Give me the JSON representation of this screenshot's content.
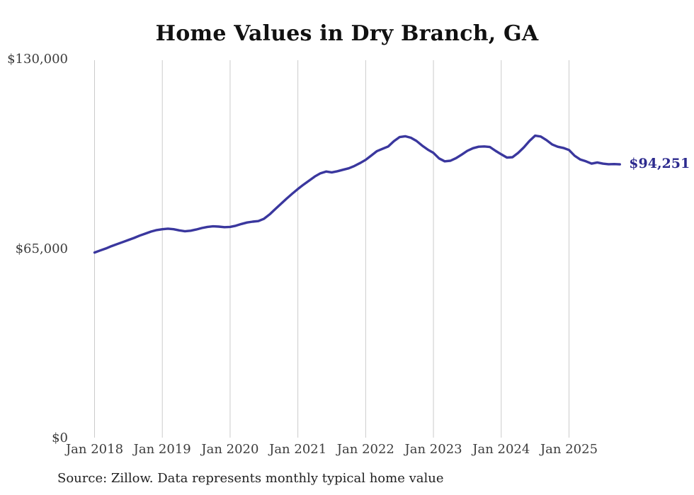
{
  "page": {
    "background": "#ffffff"
  },
  "chart_data": {
    "type": "line",
    "title": "Home Values in Dry Branch, GA",
    "xlabel": "",
    "ylabel": "",
    "ylim": [
      0,
      130000
    ],
    "y_ticks": [
      130000,
      65000,
      0
    ],
    "y_tick_labels": [
      "$130,000",
      "$65,000",
      "$0"
    ],
    "x_tick_labels": [
      "Jan 2018",
      "Jan 2019",
      "Jan 2020",
      "Jan 2021",
      "Jan 2022",
      "Jan 2023",
      "Jan 2024",
      "Jan 2025"
    ],
    "grid": "vertical-only",
    "legend_position": "none",
    "end_label": "$94,251",
    "last_value": 94251,
    "source_note": "Source: Zillow. Data represents monthly typical home value",
    "colors": {
      "line": "#3a379e",
      "end_label": "#2c2a8e",
      "gridline": "#cbcbcb",
      "title": "#111111",
      "axis_label": "#3d3d3d",
      "source": "#222222"
    },
    "series": [
      {
        "name": "Typical home value (monthly)",
        "start": "2018-01",
        "end": "2025-10",
        "frequency": "monthly",
        "values": [
          64000,
          64700,
          65400,
          66200,
          66900,
          67600,
          68300,
          69000,
          69800,
          70500,
          71200,
          71700,
          72000,
          72200,
          72000,
          71600,
          71300,
          71500,
          71900,
          72400,
          72800,
          73000,
          72900,
          72700,
          72800,
          73200,
          73800,
          74300,
          74600,
          74800,
          75600,
          77100,
          78900,
          80700,
          82500,
          84200,
          85800,
          87300,
          88700,
          90100,
          91200,
          91800,
          91500,
          91900,
          92400,
          92900,
          93700,
          94700,
          95800,
          97300,
          98800,
          99600,
          100400,
          102200,
          103600,
          103900,
          103400,
          102300,
          100700,
          99300,
          98200,
          96300,
          95300,
          95500,
          96400,
          97600,
          98900,
          99800,
          100300,
          100400,
          100200,
          98900,
          97700,
          96600,
          96700,
          98200,
          100100,
          102300,
          104100,
          103800,
          102600,
          101100,
          100300,
          99900,
          99200,
          97200,
          95900,
          95300,
          94500,
          94900,
          94500,
          94300,
          94350,
          94251
        ]
      }
    ]
  }
}
